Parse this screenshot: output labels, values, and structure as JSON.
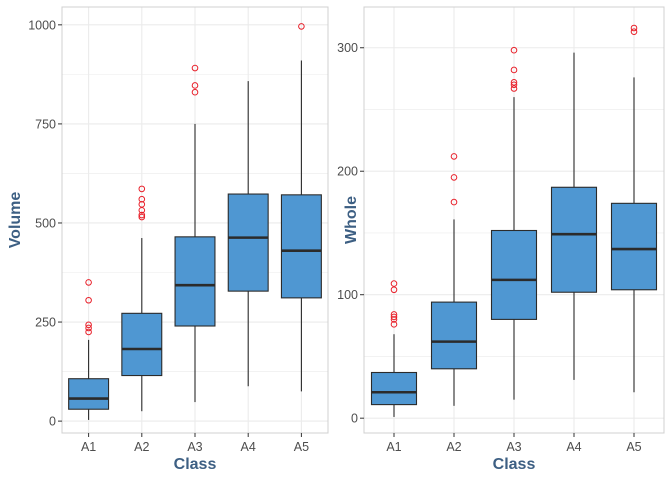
{
  "chart_data": [
    {
      "type": "boxplot",
      "xlabel": "Class",
      "ylabel": "Volume",
      "categories": [
        "A1",
        "A2",
        "A3",
        "A4",
        "A5"
      ],
      "ylim": [
        -30,
        1045
      ],
      "yticks": [
        0,
        250,
        500,
        750,
        1000
      ],
      "boxes": [
        {
          "category": "A1",
          "whisker_low": 3,
          "q1": 30,
          "median": 57,
          "q3": 107,
          "whisker_high": 205,
          "outliers": [
            350,
            305,
            243,
            235,
            225
          ]
        },
        {
          "category": "A2",
          "whisker_low": 25,
          "q1": 115,
          "median": 182,
          "q3": 272,
          "whisker_high": 462,
          "outliers": [
            586,
            560,
            547,
            532,
            520,
            515
          ]
        },
        {
          "category": "A3",
          "whisker_low": 48,
          "q1": 240,
          "median": 343,
          "q3": 465,
          "whisker_high": 750,
          "outliers": [
            891,
            847,
            830
          ]
        },
        {
          "category": "A4",
          "whisker_low": 88,
          "q1": 328,
          "median": 463,
          "q3": 573,
          "whisker_high": 858,
          "outliers": []
        },
        {
          "category": "A5",
          "whisker_low": 75,
          "q1": 311,
          "median": 430,
          "q3": 571,
          "whisker_high": 910,
          "outliers": [
            996
          ]
        }
      ]
    },
    {
      "type": "boxplot",
      "xlabel": "Class",
      "ylabel": "Whole",
      "categories": [
        "A1",
        "A2",
        "A3",
        "A4",
        "A5"
      ],
      "ylim": [
        -12,
        333
      ],
      "yticks": [
        0,
        100,
        200,
        300
      ],
      "boxes": [
        {
          "category": "A1",
          "whisker_low": 1,
          "q1": 11,
          "median": 21,
          "q3": 37,
          "whisker_high": 68,
          "outliers": [
            109,
            104,
            84,
            82,
            80,
            76
          ]
        },
        {
          "category": "A2",
          "whisker_low": 10,
          "q1": 40,
          "median": 62,
          "q3": 94,
          "whisker_high": 161,
          "outliers": [
            212,
            195,
            175
          ]
        },
        {
          "category": "A3",
          "whisker_low": 15,
          "q1": 80,
          "median": 112,
          "q3": 152,
          "whisker_high": 260,
          "outliers": [
            298,
            282,
            272,
            270,
            267
          ]
        },
        {
          "category": "A4",
          "whisker_low": 31,
          "q1": 102,
          "median": 149,
          "q3": 187,
          "whisker_high": 296,
          "outliers": []
        },
        {
          "category": "A5",
          "whisker_low": 21,
          "q1": 104,
          "median": 137,
          "q3": 174,
          "whisker_high": 276,
          "outliers": [
            316,
            313
          ]
        }
      ]
    }
  ],
  "colors": {
    "box_fill": "#4f97d2",
    "box_stroke": "#2b2b2b",
    "outlier": "#e8202a",
    "axis_title": "#3d5f83",
    "tick_label": "#4d4d4d",
    "grid": "#ebebeb",
    "panel_border": "#d0d0d0"
  }
}
